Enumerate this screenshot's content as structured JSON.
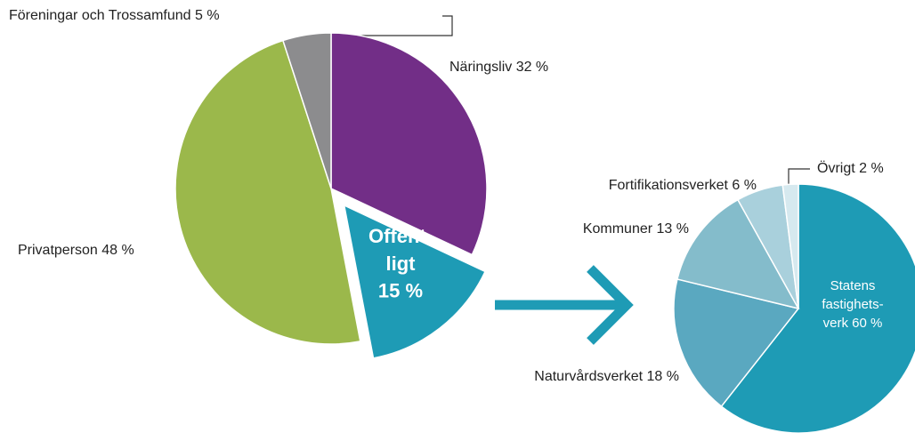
{
  "chart_data": [
    {
      "type": "pie",
      "labels": [
        "Näringsliv 32 %",
        [
          "Offent-",
          "ligt",
          "15 %"
        ],
        "Privatperson 48 %",
        "Föreningar och Trossamfund 5 %"
      ],
      "values": [
        32,
        15,
        48,
        5
      ],
      "colors": [
        "#722e87",
        "#1e9bb5",
        "#9bb84b",
        "#8c8c8e"
      ],
      "exploded": [
        false,
        true,
        false,
        false
      ]
    },
    {
      "type": "pie",
      "labels": [
        [
          "Statens",
          "fastighets-",
          "verk 60 %"
        ],
        "Naturvårdsverket 18 %",
        "Kommuner 13 %",
        "Fortifikationsverket 6 %",
        "Övrigt 2 %"
      ],
      "values": [
        60,
        18,
        13,
        6,
        2
      ],
      "colors": [
        "#1e9bb5",
        "#5aa8c0",
        "#84bccb",
        "#a9d0dc",
        "#d6e9ef"
      ]
    }
  ]
}
